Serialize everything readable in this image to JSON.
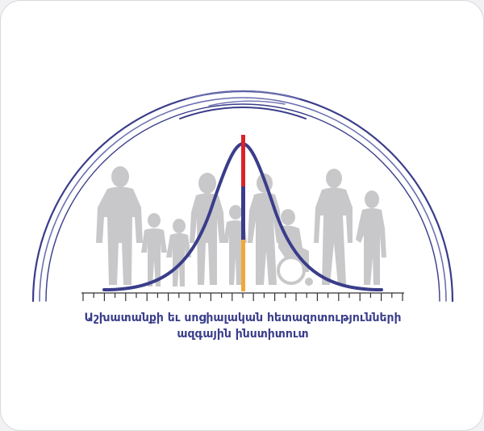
{
  "caption": {
    "line1": "Աշխատանքի եւ սոցիալական հետազոտությունների",
    "line2": "ազգային ինստիտուտ"
  },
  "colors": {
    "arc": "#3a3d8a",
    "arc_light": "#6b6fb0",
    "curve": "#3a3d8a",
    "people": "#c8c8ca",
    "ruler": "#333333",
    "flag_red": "#d9232b",
    "flag_blue": "#3a3d8a",
    "flag_orange": "#f2a83a"
  },
  "icons": [
    "people-silhouettes",
    "bell-curve",
    "armenian-flag-bar",
    "ruler-scale",
    "arch-lines"
  ]
}
